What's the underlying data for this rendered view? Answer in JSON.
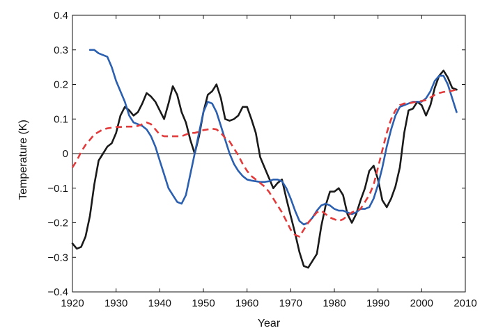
{
  "chart_data": {
    "type": "line",
    "xlabel": "Year",
    "ylabel": "Temperature (K)",
    "xlim": [
      1920,
      2010
    ],
    "ylim": [
      -0.4,
      0.4
    ],
    "xticks": [
      1920,
      1930,
      1940,
      1950,
      1960,
      1970,
      1980,
      1990,
      2000,
      2010
    ],
    "yticks": [
      -0.4,
      -0.3,
      -0.2,
      -0.1,
      0,
      0.1,
      0.2,
      0.3,
      0.4
    ],
    "ytick_labels": [
      "−0.4",
      "−0.3",
      "−0.2",
      "−0.1",
      "0",
      "0.1",
      "0.2",
      "0.3",
      "0.4"
    ],
    "zero_line": true,
    "grid": false,
    "series": [
      {
        "color": "#1a1a1a",
        "style": "solid",
        "x": [
          1920,
          1921,
          1922,
          1923,
          1924,
          1925,
          1926,
          1927,
          1928,
          1929,
          1930,
          1931,
          1932,
          1933,
          1934,
          1935,
          1936,
          1937,
          1938,
          1939,
          1940,
          1941,
          1942,
          1943,
          1944,
          1945,
          1946,
          1947,
          1948,
          1949,
          1950,
          1951,
          1952,
          1953,
          1954,
          1955,
          1956,
          1957,
          1958,
          1959,
          1960,
          1961,
          1962,
          1963,
          1964,
          1965,
          1966,
          1967,
          1968,
          1969,
          1970,
          1971,
          1972,
          1973,
          1974,
          1975,
          1976,
          1977,
          1978,
          1979,
          1980,
          1981,
          1982,
          1983,
          1984,
          1985,
          1986,
          1987,
          1988,
          1989,
          1990,
          1991,
          1992,
          1993,
          1994,
          1995,
          1996,
          1997,
          1998,
          1999,
          2000,
          2001,
          2002,
          2003,
          2004,
          2005,
          2006,
          2007,
          2008
        ],
        "y": [
          -0.26,
          -0.275,
          -0.27,
          -0.24,
          -0.18,
          -0.09,
          -0.02,
          0.0,
          0.02,
          0.03,
          0.06,
          0.11,
          0.135,
          0.125,
          0.11,
          0.12,
          0.145,
          0.175,
          0.165,
          0.15,
          0.125,
          0.1,
          0.145,
          0.195,
          0.17,
          0.12,
          0.09,
          0.04,
          0.0,
          0.05,
          0.12,
          0.17,
          0.18,
          0.2,
          0.16,
          0.1,
          0.095,
          0.1,
          0.11,
          0.135,
          0.135,
          0.1,
          0.06,
          -0.01,
          -0.04,
          -0.07,
          -0.1,
          -0.085,
          -0.075,
          -0.13,
          -0.18,
          -0.23,
          -0.285,
          -0.325,
          -0.33,
          -0.31,
          -0.29,
          -0.21,
          -0.15,
          -0.11,
          -0.11,
          -0.1,
          -0.12,
          -0.175,
          -0.2,
          -0.175,
          -0.135,
          -0.1,
          -0.05,
          -0.035,
          -0.075,
          -0.135,
          -0.155,
          -0.13,
          -0.095,
          -0.04,
          0.06,
          0.125,
          0.13,
          0.15,
          0.14,
          0.11,
          0.14,
          0.19,
          0.225,
          0.24,
          0.22,
          0.19,
          0.185
        ]
      },
      {
        "color": "#2b5fb0",
        "style": "solid",
        "x": [
          1924,
          1925,
          1926,
          1927,
          1928,
          1929,
          1930,
          1931,
          1932,
          1933,
          1934,
          1935,
          1936,
          1937,
          1938,
          1939,
          1940,
          1941,
          1942,
          1943,
          1944,
          1945,
          1946,
          1947,
          1948,
          1949,
          1950,
          1951,
          1952,
          1953,
          1954,
          1955,
          1956,
          1957,
          1958,
          1959,
          1960,
          1961,
          1962,
          1963,
          1964,
          1965,
          1966,
          1967,
          1968,
          1969,
          1970,
          1971,
          1972,
          1973,
          1974,
          1975,
          1976,
          1977,
          1978,
          1979,
          1980,
          1981,
          1982,
          1983,
          1984,
          1985,
          1986,
          1987,
          1988,
          1989,
          1990,
          1991,
          1992,
          1993,
          1994,
          1995,
          1996,
          1997,
          1998,
          1999,
          2000,
          2001,
          2002,
          2003,
          2004,
          2005,
          2006,
          2007,
          2008
        ],
        "y": [
          0.3,
          0.3,
          0.29,
          0.285,
          0.28,
          0.25,
          0.21,
          0.18,
          0.15,
          0.11,
          0.09,
          0.085,
          0.08,
          0.07,
          0.05,
          0.02,
          -0.02,
          -0.06,
          -0.1,
          -0.12,
          -0.14,
          -0.145,
          -0.12,
          -0.06,
          0.0,
          0.06,
          0.12,
          0.15,
          0.145,
          0.12,
          0.08,
          0.04,
          0.0,
          -0.03,
          -0.05,
          -0.065,
          -0.075,
          -0.078,
          -0.08,
          -0.082,
          -0.082,
          -0.08,
          -0.075,
          -0.075,
          -0.08,
          -0.1,
          -0.13,
          -0.165,
          -0.195,
          -0.205,
          -0.2,
          -0.185,
          -0.165,
          -0.15,
          -0.145,
          -0.15,
          -0.16,
          -0.165,
          -0.165,
          -0.17,
          -0.175,
          -0.17,
          -0.16,
          -0.16,
          -0.155,
          -0.13,
          -0.09,
          -0.04,
          0.02,
          0.07,
          0.11,
          0.135,
          0.14,
          0.145,
          0.15,
          0.15,
          0.15,
          0.16,
          0.18,
          0.21,
          0.225,
          0.225,
          0.2,
          0.16,
          0.12
        ]
      },
      {
        "color": "#e33b3b",
        "style": "dashed",
        "x": [
          1920,
          1921,
          1922,
          1923,
          1924,
          1925,
          1926,
          1927,
          1928,
          1929,
          1930,
          1931,
          1932,
          1933,
          1934,
          1935,
          1936,
          1937,
          1938,
          1939,
          1940,
          1941,
          1942,
          1943,
          1944,
          1945,
          1946,
          1947,
          1948,
          1949,
          1950,
          1951,
          1952,
          1953,
          1954,
          1955,
          1956,
          1957,
          1958,
          1959,
          1960,
          1961,
          1962,
          1963,
          1964,
          1965,
          1966,
          1967,
          1968,
          1969,
          1970,
          1971,
          1972,
          1973,
          1974,
          1975,
          1976,
          1977,
          1978,
          1979,
          1980,
          1981,
          1982,
          1983,
          1984,
          1985,
          1986,
          1987,
          1988,
          1989,
          1990,
          1991,
          1992,
          1993,
          1994,
          1995,
          1996,
          1997,
          1998,
          1999,
          2000,
          2001,
          2002,
          2003,
          2004,
          2005,
          2006,
          2007,
          2008
        ],
        "y": [
          -0.04,
          -0.02,
          0.005,
          0.025,
          0.04,
          0.055,
          0.063,
          0.07,
          0.073,
          0.075,
          0.077,
          0.077,
          0.078,
          0.078,
          0.078,
          0.08,
          0.085,
          0.09,
          0.085,
          0.07,
          0.055,
          0.05,
          0.05,
          0.05,
          0.05,
          0.05,
          0.055,
          0.06,
          0.06,
          0.063,
          0.068,
          0.07,
          0.072,
          0.07,
          0.06,
          0.045,
          0.035,
          0.015,
          -0.005,
          -0.03,
          -0.05,
          -0.065,
          -0.075,
          -0.085,
          -0.095,
          -0.11,
          -0.13,
          -0.15,
          -0.17,
          -0.195,
          -0.22,
          -0.235,
          -0.24,
          -0.22,
          -0.2,
          -0.185,
          -0.17,
          -0.165,
          -0.175,
          -0.185,
          -0.19,
          -0.195,
          -0.19,
          -0.18,
          -0.17,
          -0.165,
          -0.16,
          -0.14,
          -0.12,
          -0.09,
          -0.04,
          0.01,
          0.06,
          0.1,
          0.125,
          0.14,
          0.145,
          0.145,
          0.148,
          0.15,
          0.152,
          0.155,
          0.162,
          0.17,
          0.175,
          0.178,
          0.18,
          0.182,
          0.185
        ]
      }
    ]
  }
}
